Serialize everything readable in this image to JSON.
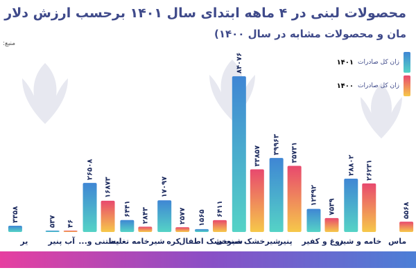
{
  "header": {
    "title": "محصولات لبنی در ۴ ماهه ابتدای سال ۱۴۰۱ برحسب ارزش دلار",
    "subtitle": "مان و محصولات مشابه در سال ۱۴۰۰)",
    "source": "منبع:"
  },
  "legend": [
    {
      "label": "زان کل صادرات",
      "year": "۱۴۰۱",
      "color_top": "#3f86d4",
      "color_bottom": "#55d3c6"
    },
    {
      "label": "زان کل صادرات",
      "year": "۱۴۰۰",
      "color_top": "#e8496e",
      "color_bottom": "#f6c84a"
    }
  ],
  "chart_data": {
    "type": "bar",
    "title": "محصولات لبنی در ۴ ماهه ابتدای سال ۱۴۰۱ برحسب ارزش دلار",
    "categories": [
      "ماس",
      "خامه و شیر",
      "دوغ و کفیر",
      "پنیر",
      "شیرخشک صنعتی",
      "شیرخشک اطفال",
      "کره",
      "شیرخامه تغلیظ",
      "بستنی و...",
      "آب پنیر",
      "یر"
    ],
    "series": [
      {
        "name": "۱۴۰۱",
        "values": [
          null,
          28802,
          12492,
          39963,
          84076,
          1565,
          17097,
          6441,
          26508,
          537,
          3358
        ],
        "labels": [
          "",
          "۲۸۸۰۲",
          "۱۲۴۹۲",
          "۳۹۹۶۳",
          "۸۴۰۷۶",
          "۱۵۶۵",
          "۱۷۰۹۷",
          "۶۴۴۱",
          "۲۶۵۰۸",
          "۵۳۷",
          "۳۳۵۸"
        ]
      },
      {
        "name": "۱۴۰۰",
        "values": [
          5568,
          26231,
          7539,
          35731,
          33857,
          6411,
          2577,
          2843,
          16873,
          46,
          null
        ],
        "labels": [
          "۵۵۶۸",
          "۲۶۲۳۱",
          "۷۵۳۹",
          "۳۵۷۳۱",
          "۳۳۸۵۷",
          "۶۴۱۱",
          "۲۵۷۷",
          "۲۸۴۳",
          "۱۶۸۷۳",
          "۴۶",
          ""
        ]
      }
    ],
    "ylim": [
      0,
      86000
    ],
    "grid": false,
    "legend_position": "top-right"
  }
}
